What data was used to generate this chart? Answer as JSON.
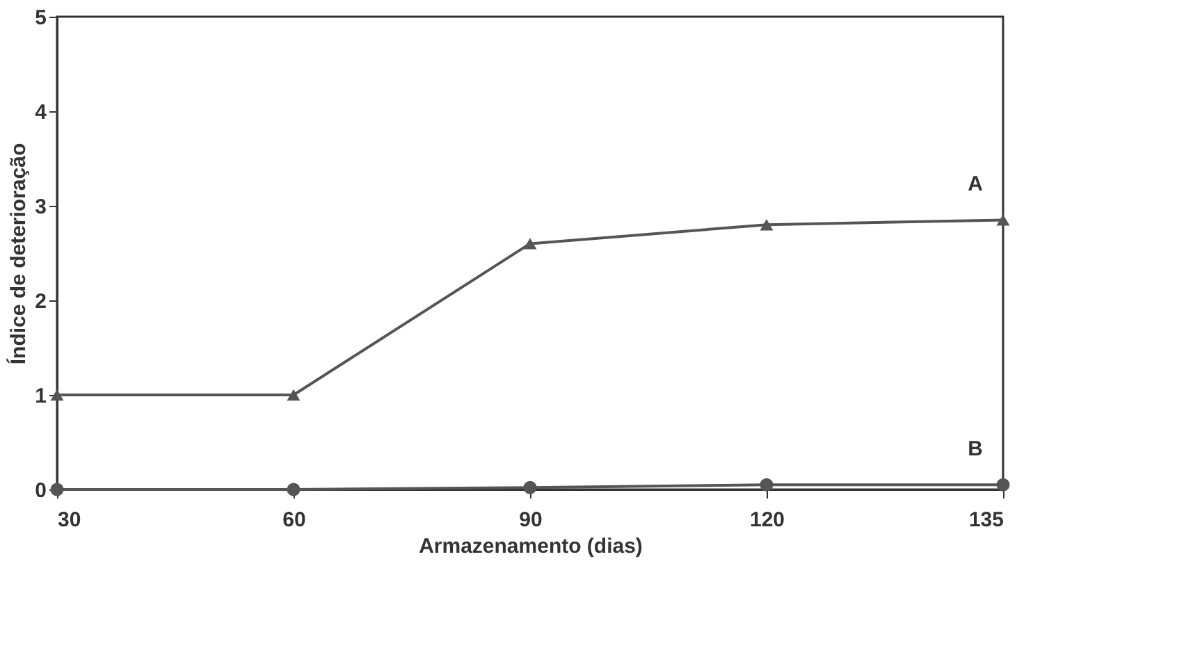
{
  "chart_data": {
    "type": "line",
    "xlabel": "Armazenamento (dias)",
    "ylabel": "Índice de deterioração",
    "categories": [
      "30",
      "60",
      "90",
      "120",
      "135"
    ],
    "series": [
      {
        "name": "A",
        "color": "#555555",
        "marker": "triangle",
        "values": [
          1,
          1,
          2.6,
          2.8,
          2.85
        ]
      },
      {
        "name": "B",
        "color": "#555555",
        "marker": "circle",
        "values": [
          0,
          0,
          0.02,
          0.05,
          0.05
        ]
      }
    ],
    "ylim": [
      0,
      5
    ],
    "yticks": [
      0,
      1,
      2,
      3,
      4,
      5
    ],
    "grid": false
  }
}
